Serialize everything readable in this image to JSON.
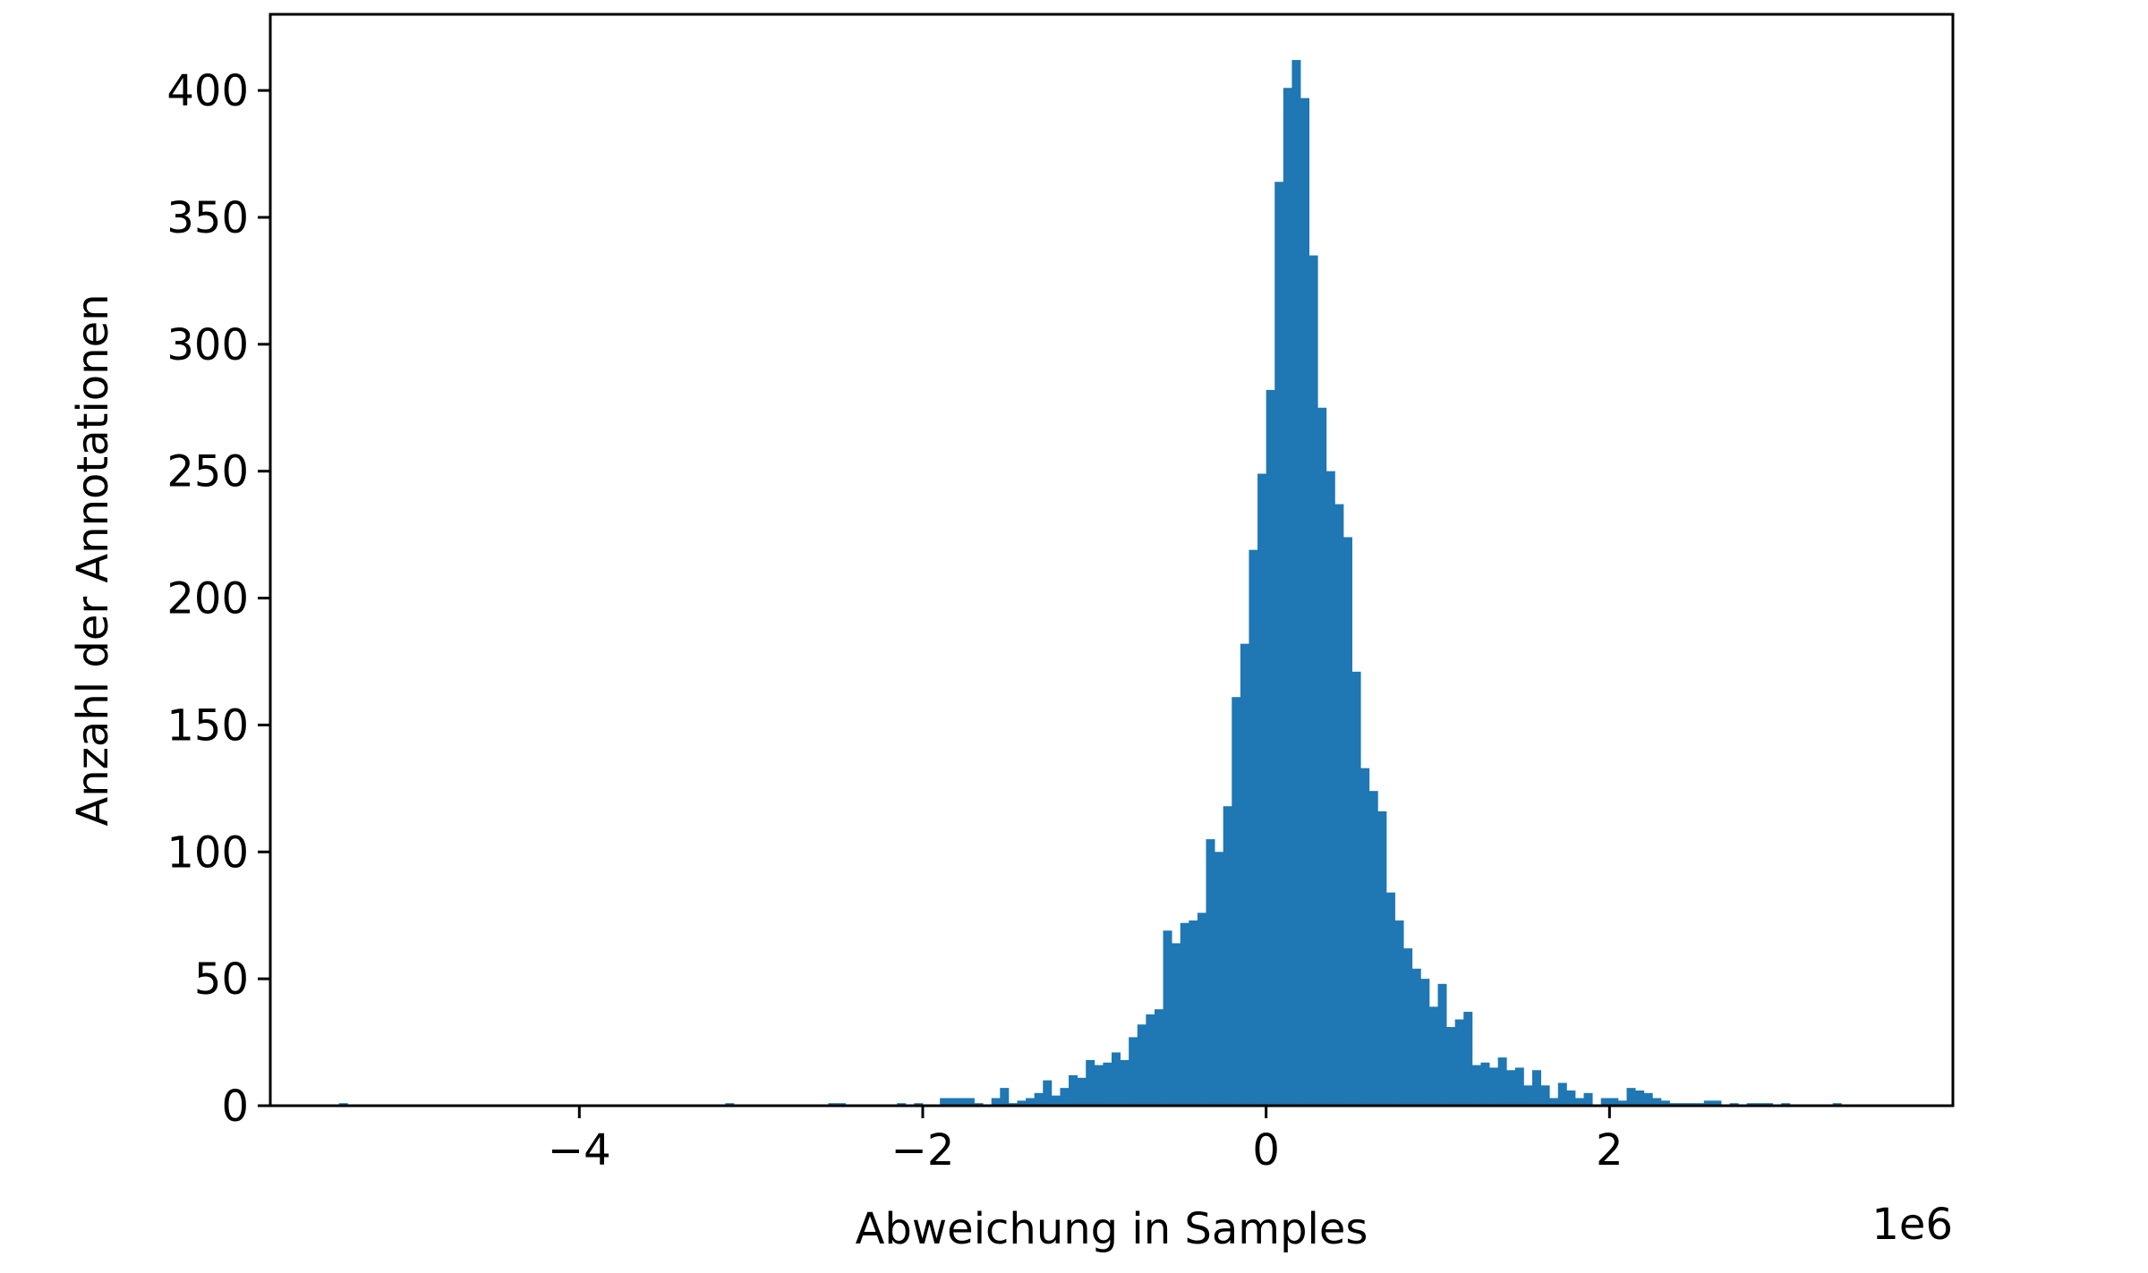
{
  "chart_data": {
    "type": "bar",
    "subtype": "histogram",
    "title": "",
    "xlabel": "Abweichung in Samples",
    "ylabel": "Anzahl der Annotationen",
    "x_offset_label": "1e6",
    "x_unit_multiplier": 1000000,
    "xlim": [
      -5.8,
      4.0
    ],
    "ylim": [
      0,
      430
    ],
    "xticks": [
      -4,
      -2,
      0,
      2
    ],
    "xtick_labels": [
      "−4",
      "−2",
      "0",
      "2"
    ],
    "yticks": [
      0,
      50,
      100,
      150,
      200,
      250,
      300,
      350,
      400
    ],
    "ytick_labels": [
      "0",
      "50",
      "100",
      "150",
      "200",
      "250",
      "300",
      "350",
      "400"
    ],
    "grid": false,
    "legend": "none",
    "bar_color": "#1f77b4",
    "bin_start": -5.4,
    "bin_width": 0.05,
    "counts": [
      1,
      0,
      0,
      0,
      0,
      0,
      0,
      0,
      0,
      0,
      0,
      0,
      0,
      0,
      0,
      0,
      0,
      0,
      0,
      0,
      0,
      0,
      0,
      0,
      0,
      0,
      0,
      0,
      0,
      0,
      0,
      0,
      0,
      0,
      0,
      0,
      0,
      0,
      0,
      0,
      0,
      0,
      0,
      0,
      0,
      1,
      0,
      0,
      0,
      0,
      0,
      0,
      0,
      0,
      0,
      0,
      0,
      1,
      1,
      0,
      0,
      0,
      0,
      0,
      0,
      1,
      0,
      1,
      0,
      0,
      3,
      3,
      3,
      3,
      1,
      0,
      3,
      7,
      1,
      2,
      3,
      5,
      10,
      4,
      7,
      12,
      11,
      18,
      16,
      17,
      21,
      18,
      27,
      32,
      36,
      38,
      69,
      64,
      72,
      73,
      76,
      105,
      100,
      118,
      161,
      182,
      219,
      249,
      282,
      364,
      401,
      412,
      397,
      335,
      275,
      250,
      237,
      224,
      171,
      133,
      124,
      116,
      84,
      73,
      62,
      54,
      50,
      39,
      48,
      31,
      34,
      37,
      16,
      17,
      15,
      19,
      14,
      15,
      8,
      14,
      8,
      3,
      9,
      6,
      3,
      5,
      0,
      3,
      3,
      2,
      7,
      6,
      5,
      3,
      2,
      1,
      1,
      1,
      1,
      2,
      2,
      0,
      1,
      0,
      1,
      1,
      1,
      0,
      1,
      0,
      0,
      0,
      0,
      0,
      1,
      0,
      0
    ]
  }
}
